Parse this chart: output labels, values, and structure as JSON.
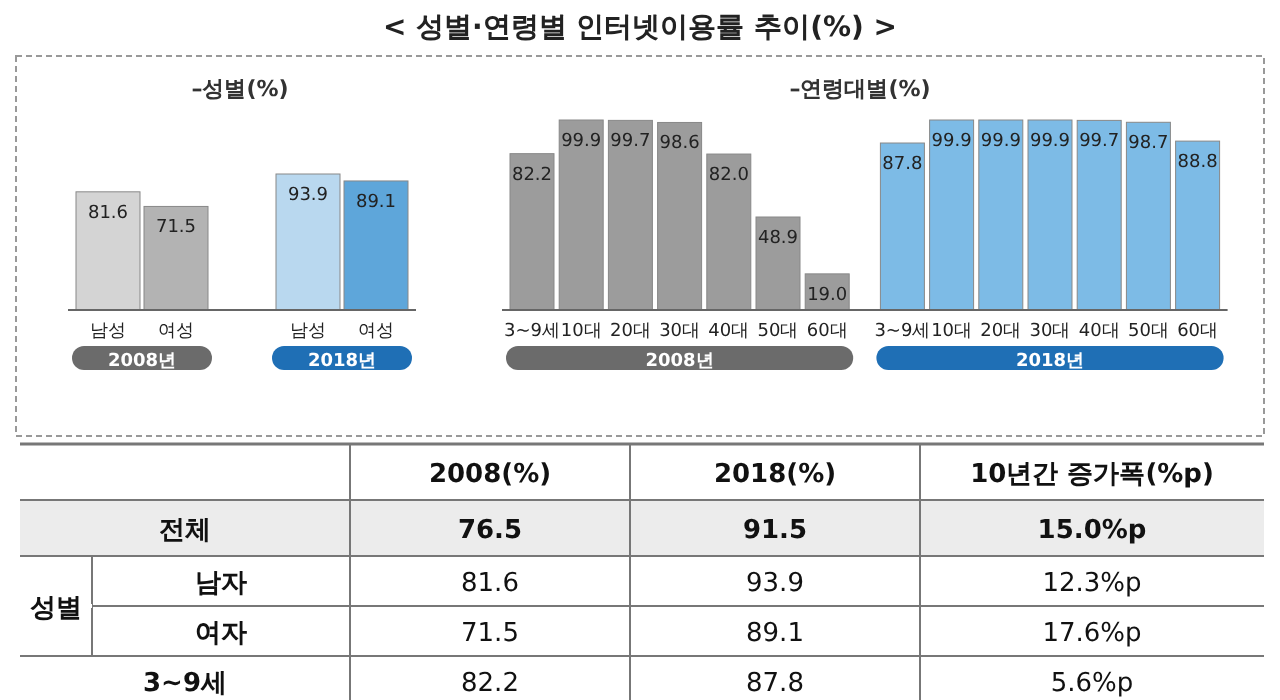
{
  "chart_data": [
    {
      "type": "other",
      "title": "< 성별·연령별 인터넷이용률 추이(%) >"
    },
    {
      "type": "bar",
      "title": "–성별(%)",
      "categories": [
        "남성",
        "여성",
        "남성",
        "여성"
      ],
      "values": [
        81.6,
        71.5,
        93.9,
        89.1
      ],
      "colors": [
        "#d4d4d4",
        "#b3b3b3",
        "#b9d8ef",
        "#5ea6da"
      ],
      "data_labels": true,
      "annotations": [
        "2008년",
        "2018년"
      ]
    },
    {
      "type": "bar",
      "title": "–연령대별(%)",
      "categories": [
        "3~9세",
        "10대",
        "20대",
        "30대",
        "40대",
        "50대",
        "60대",
        "3~9세",
        "10대",
        "20대",
        "30대",
        "40대",
        "50대",
        "60대"
      ],
      "values": [
        82.2,
        99.9,
        99.7,
        98.6,
        82.0,
        48.9,
        19.0,
        87.8,
        99.9,
        99.9,
        99.9,
        99.7,
        98.7,
        88.8
      ],
      "colors": [
        "#9c9c9c",
        "#9c9c9c",
        "#9c9c9c",
        "#9c9c9c",
        "#9c9c9c",
        "#9c9c9c",
        "#9c9c9c",
        "#7dbbe6",
        "#7dbbe6",
        "#7dbbe6",
        "#7dbbe6",
        "#7dbbe6",
        "#7dbbe6",
        "#7dbbe6"
      ],
      "value_labels": [
        "82.2",
        "99.9",
        "99.7",
        "98.6",
        "82.0",
        "48.9",
        "19.0",
        "87.8",
        "99.9",
        "99.9",
        "99.9",
        "99.7",
        "98.7",
        "88.8"
      ],
      "annotations": [
        "2008년",
        "2018년"
      ]
    },
    {
      "type": "other",
      "categories": [
        "2008(%)",
        "2018(%)",
        "10년간 증가폭(%p)"
      ],
      "y_categories": [
        "전체",
        "남자",
        "여자",
        "3~9세"
      ],
      "cell_labels": [
        [
          "76.5",
          "91.5",
          "15.0%p"
        ],
        [
          "81.6",
          "93.9",
          "12.3%p"
        ],
        [
          "71.5",
          "89.1",
          "17.6%p"
        ],
        [
          "82.2",
          "87.8",
          "5.6%p"
        ]
      ],
      "annotations": [
        "성별"
      ]
    }
  ]
}
